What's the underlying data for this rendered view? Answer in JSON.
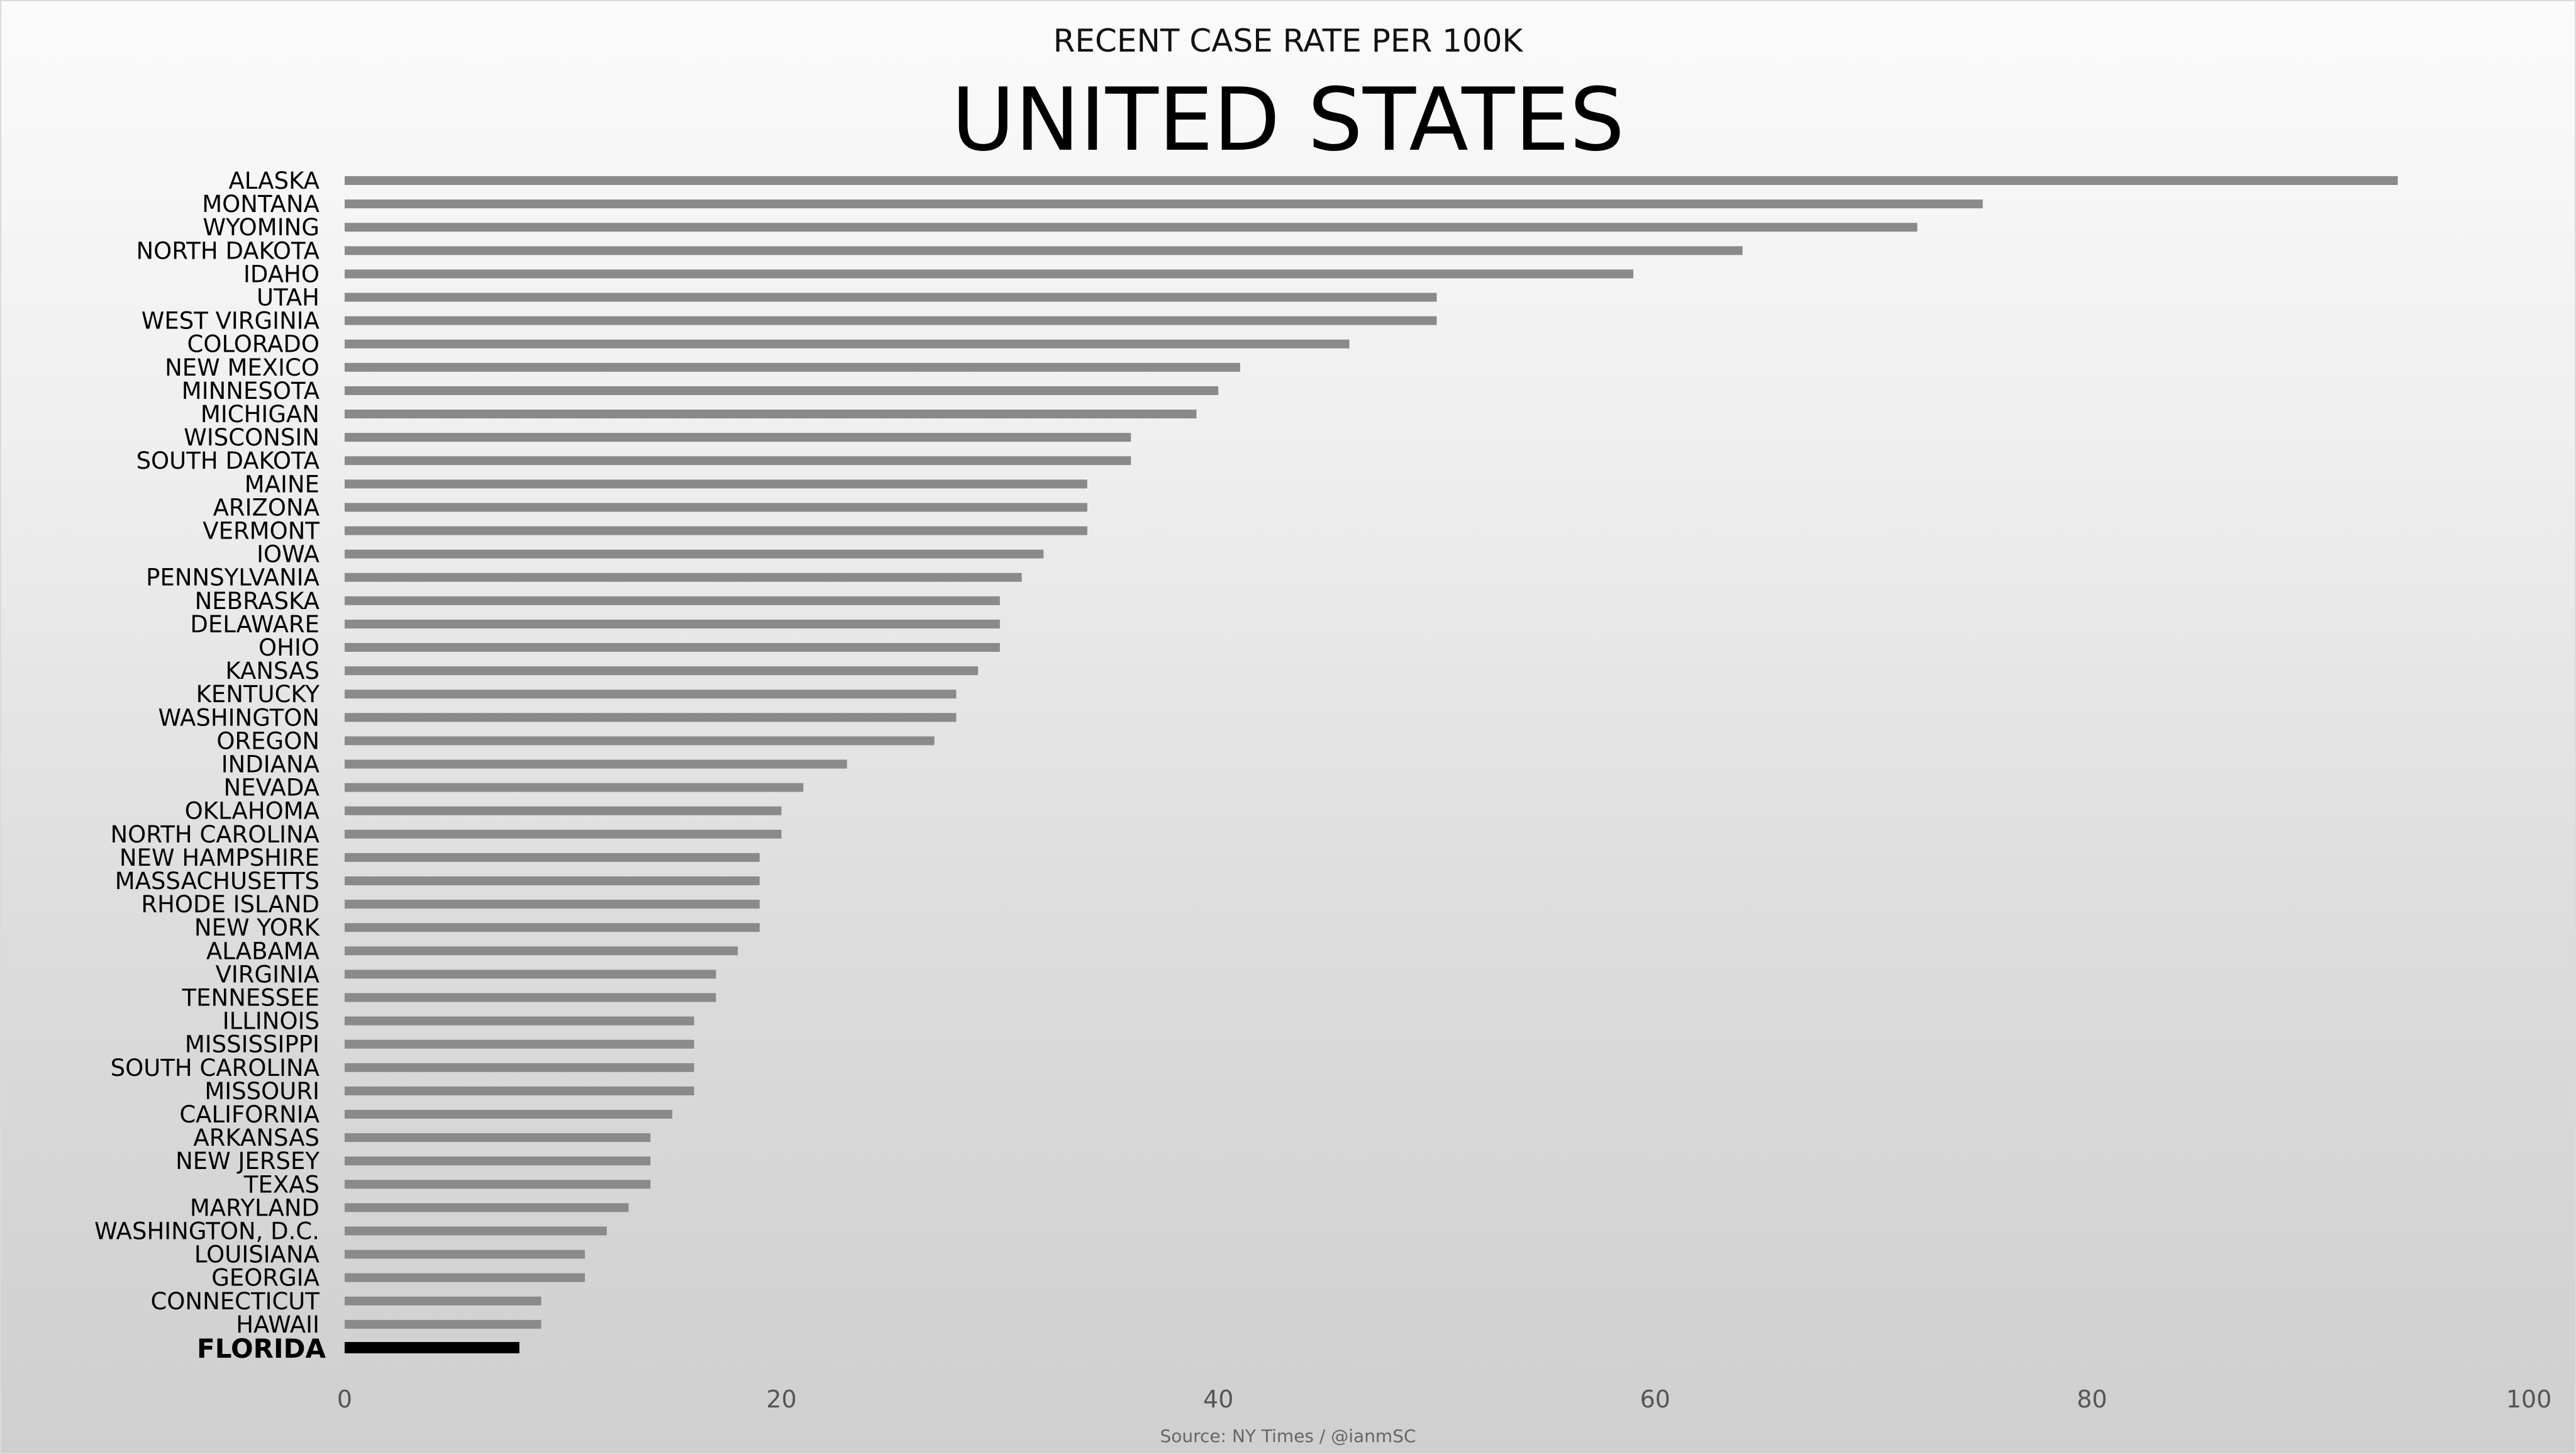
{
  "chart_data": {
    "type": "bar",
    "orientation": "horizontal",
    "subtitle": "RECENT CASE RATE PER 100K",
    "title": "UNITED STATES",
    "source": "Source: NY Times / @ianmSC",
    "xlim": [
      0,
      100
    ],
    "x_ticks": [
      "0",
      "20",
      "40",
      "60",
      "80",
      "100"
    ],
    "grid": false,
    "legend": "none",
    "bar_color": "#8a8a8a",
    "highlight_color": "#000000",
    "highlight_category": "FLORIDA",
    "categories": [
      "ALASKA",
      "MONTANA",
      "WYOMING",
      "NORTH DAKOTA",
      "IDAHO",
      "UTAH",
      "WEST VIRGINIA",
      "COLORADO",
      "NEW MEXICO",
      "MINNESOTA",
      "MICHIGAN",
      "WISCONSIN",
      "SOUTH DAKOTA",
      "MAINE",
      "ARIZONA",
      "VERMONT",
      "IOWA",
      "PENNSYLVANIA",
      "NEBRASKA",
      "DELAWARE",
      "OHIO",
      "KANSAS",
      "KENTUCKY",
      "WASHINGTON",
      "OREGON",
      "INDIANA",
      "NEVADA",
      "OKLAHOMA",
      "NORTH CAROLINA",
      "NEW HAMPSHIRE",
      "MASSACHUSETTS",
      "RHODE ISLAND",
      "NEW YORK",
      "ALABAMA",
      "VIRGINIA",
      "TENNESSEE",
      "ILLINOIS",
      "MISSISSIPPI",
      "SOUTH CAROLINA",
      "MISSOURI",
      "CALIFORNIA",
      "ARKANSAS",
      "NEW JERSEY",
      "TEXAS",
      "MARYLAND",
      "WASHINGTON, D.C.",
      "LOUISIANA",
      "GEORGIA",
      "CONNECTICUT",
      "HAWAII",
      "FLORIDA"
    ],
    "values": [
      94,
      75,
      72,
      64,
      59,
      50,
      50,
      46,
      41,
      40,
      39,
      36,
      36,
      34,
      34,
      34,
      32,
      31,
      30,
      30,
      30,
      29,
      28,
      28,
      27,
      23,
      21,
      20,
      20,
      19,
      19,
      19,
      19,
      18,
      17,
      17,
      16,
      16,
      16,
      16,
      15,
      14,
      14,
      14,
      13,
      12,
      11,
      11,
      9,
      9,
      8
    ]
  }
}
